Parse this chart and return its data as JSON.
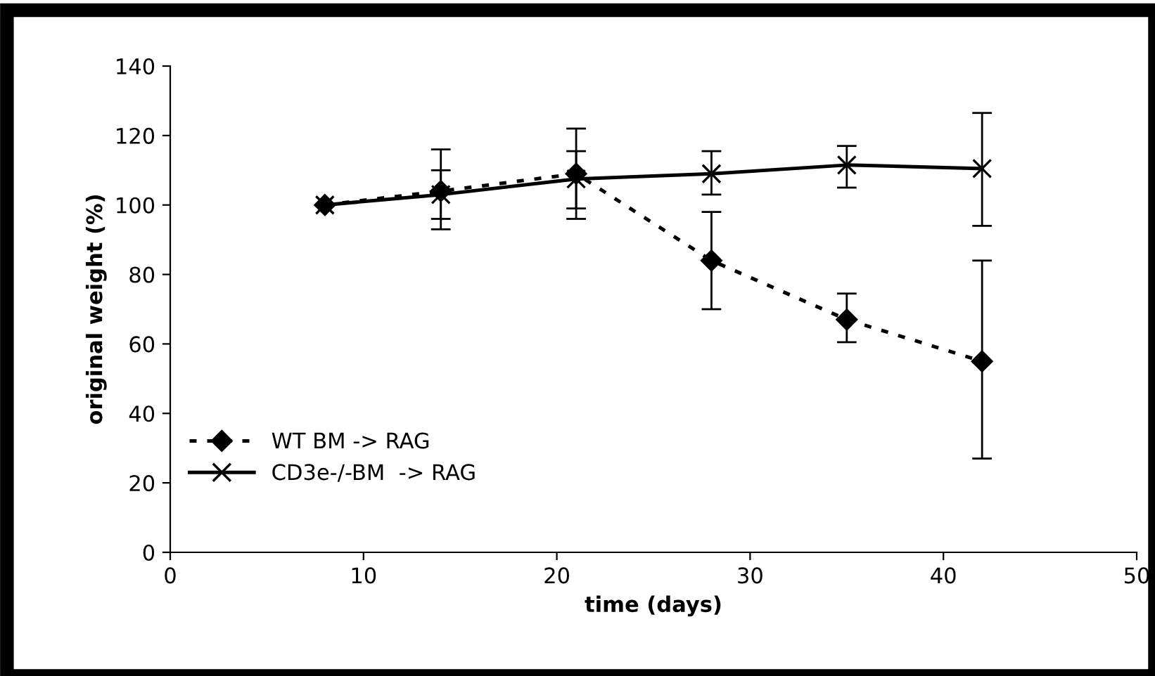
{
  "chart_data": {
    "type": "line",
    "xlabel": "time (days)",
    "ylabel": "original weight (%)",
    "x": [
      8,
      14,
      21,
      28,
      35,
      42
    ],
    "series": [
      {
        "name": "WT BM -> RAG",
        "color": "#000000",
        "marker": "diamond",
        "line_style": "dashed",
        "values": [
          100,
          104,
          109,
          84,
          67,
          55
        ],
        "errors": [
          null,
          [
            93,
            116
          ],
          [
            96,
            122
          ],
          [
            70,
            98
          ],
          [
            60.5,
            74.5
          ],
          [
            27,
            84
          ]
        ]
      },
      {
        "name": "CD3e-/-BM  -> RAG",
        "color": "#000000",
        "marker": "cross",
        "line_style": "solid",
        "values": [
          100,
          103,
          107.5,
          109,
          111.5,
          110.5
        ],
        "errors": [
          null,
          [
            96,
            110
          ],
          [
            99,
            115.5
          ],
          [
            103,
            115.5
          ],
          [
            105,
            117
          ],
          [
            94,
            126.5
          ]
        ]
      }
    ],
    "xlim": [
      0,
      50
    ],
    "xticks": [
      0,
      10,
      20,
      30,
      40,
      50
    ],
    "ylim": [
      0,
      140
    ],
    "yticks": [
      0,
      20,
      40,
      60,
      80,
      100,
      120,
      140
    ],
    "grid": false,
    "legend": "bottom left"
  }
}
